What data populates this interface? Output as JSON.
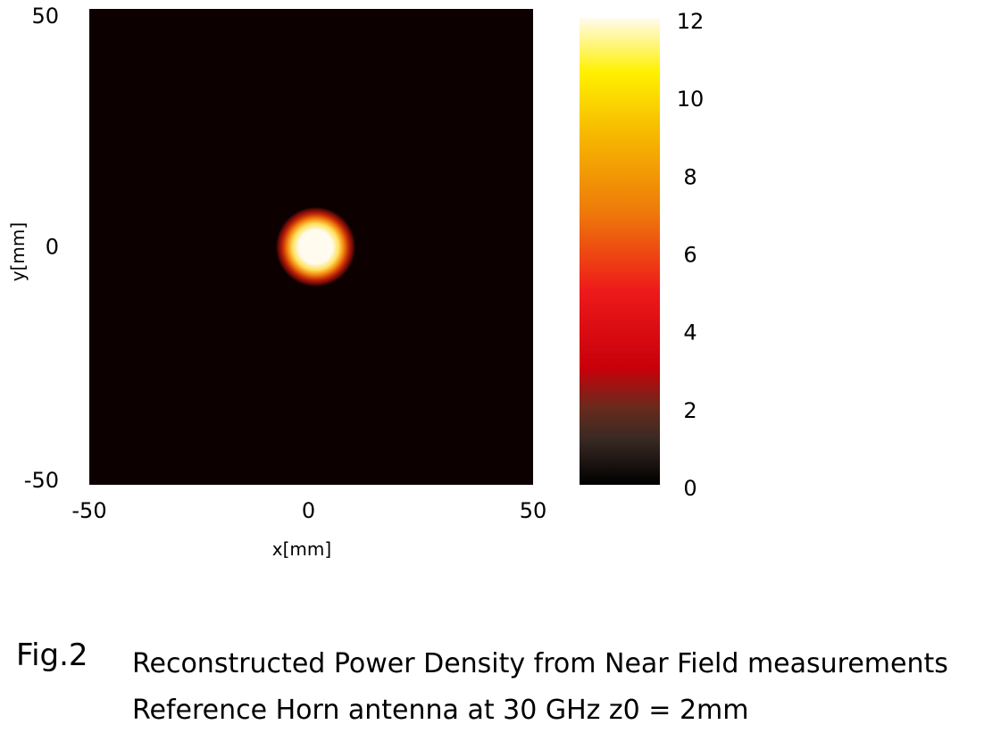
{
  "chart_data": {
    "type": "heatmap",
    "title": "",
    "xlabel": "x[mm]",
    "ylabel": "y[mm]",
    "xlim": [
      -50,
      50
    ],
    "ylim": [
      -50,
      50
    ],
    "x_ticks": [
      "-50",
      "0",
      "50"
    ],
    "y_ticks": [
      "50",
      "0",
      "-50"
    ],
    "peak": {
      "x": 1,
      "y": 0,
      "value": 12,
      "radius_mm": 3.5,
      "falloff_mm": 5.5
    },
    "background_value": 0,
    "colorbar": {
      "range": [
        0,
        12
      ],
      "ticks": [
        "12",
        "10",
        "8",
        "6",
        "4",
        "2",
        "0"
      ],
      "colormap": "hot",
      "stops": [
        {
          "value": 0,
          "color": "#000000"
        },
        {
          "value": 1.2,
          "color": "#3a2a24"
        },
        {
          "value": 2.0,
          "color": "#6a2a1c"
        },
        {
          "value": 3.0,
          "color": "#c8000a"
        },
        {
          "value": 5.0,
          "color": "#ee1a1a"
        },
        {
          "value": 7.0,
          "color": "#ee7a0a"
        },
        {
          "value": 9.0,
          "color": "#f6b800"
        },
        {
          "value": 10.6,
          "color": "#fff000"
        },
        {
          "value": 12,
          "color": "#fffbef"
        }
      ]
    },
    "heat_colors": {
      "background": "#0d0000",
      "ring": "#c81a0a",
      "mid": "#f07a0a",
      "glow": "#ffe05a",
      "core": "#fffbee"
    }
  },
  "caption": {
    "label": "Fig.2",
    "line1": "Reconstructed Power Density from Near Field measurements",
    "line2": "Reference Horn antenna at 30 GHz z0 = 2mm"
  }
}
